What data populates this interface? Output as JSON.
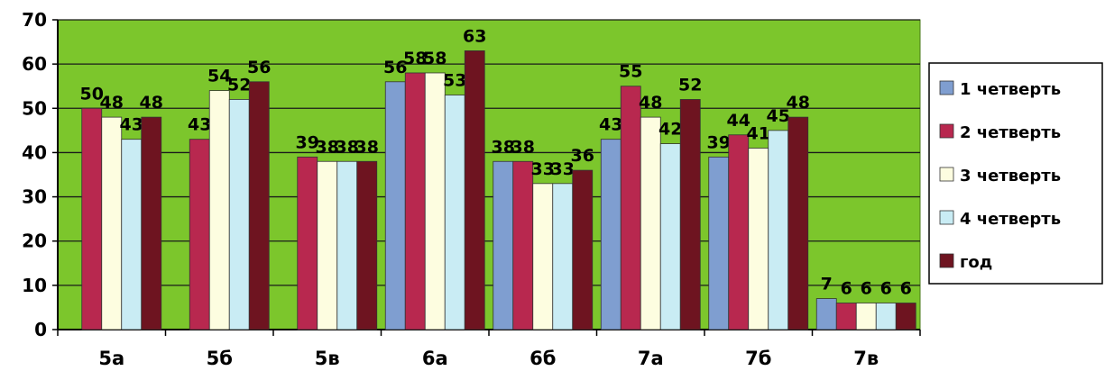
{
  "chart_data": {
    "type": "bar",
    "categories": [
      "5а",
      "5б",
      "5в",
      "6а",
      "6б",
      "7а",
      "7б",
      "7в"
    ],
    "series": [
      {
        "name": "1 четверть",
        "color": "#7f9ed0",
        "values": [
          null,
          null,
          null,
          56,
          38,
          43,
          39,
          7
        ]
      },
      {
        "name": "2 четверть",
        "color": "#b8284f",
        "values": [
          50,
          43,
          39,
          58,
          38,
          55,
          44,
          6
        ]
      },
      {
        "name": "3 четверть",
        "color": "#fdfde0",
        "values": [
          48,
          54,
          38,
          58,
          33,
          48,
          41,
          6
        ]
      },
      {
        "name": "4 четверть",
        "color": "#c9ecf4",
        "values": [
          43,
          52,
          38,
          53,
          33,
          42,
          45,
          6
        ]
      },
      {
        "name": "год",
        "color": "#6e1420",
        "values": [
          48,
          56,
          38,
          63,
          36,
          52,
          48,
          6
        ]
      }
    ],
    "ylim": [
      0,
      70
    ],
    "yticks": [
      0,
      10,
      20,
      30,
      40,
      50,
      60,
      70
    ],
    "grid": true,
    "legend": "right",
    "plot_background": "#7cc62c"
  }
}
